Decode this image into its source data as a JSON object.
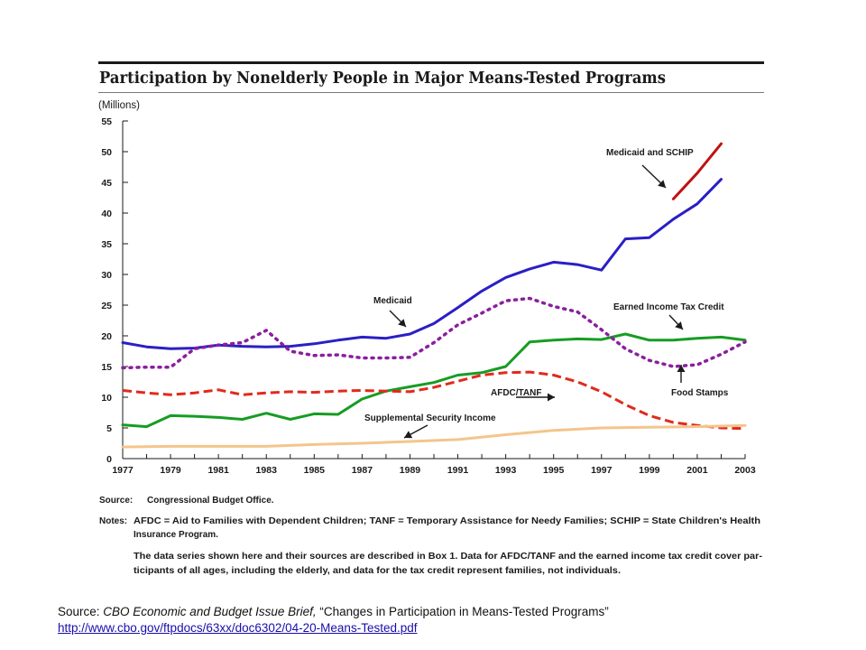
{
  "chart_data": {
    "type": "line",
    "title": "Participation by Nonelderly People in Major Means-Tested Programs",
    "ylabel": "(Millions)",
    "xlabel": "",
    "xlim": [
      1977,
      2003
    ],
    "ylim": [
      0,
      55
    ],
    "y_ticks": [
      0,
      5,
      10,
      15,
      20,
      25,
      30,
      35,
      40,
      45,
      50,
      55
    ],
    "x_ticks": [
      1977,
      1979,
      1981,
      1983,
      1985,
      1987,
      1989,
      1991,
      1993,
      1995,
      1997,
      1999,
      2001,
      2003
    ],
    "grid": false,
    "series": [
      {
        "name": "Medicaid",
        "color": "#2a1fc4",
        "dash": "solid",
        "x": [
          1977,
          1978,
          1979,
          1980,
          1981,
          1982,
          1983,
          1984,
          1985,
          1986,
          1987,
          1988,
          1989,
          1990,
          1991,
          1992,
          1993,
          1994,
          1995,
          1996,
          1997,
          1998,
          1999,
          2000,
          2001,
          2002
        ],
        "y": [
          18.9,
          18.2,
          17.9,
          18.0,
          18.5,
          18.3,
          18.2,
          18.3,
          18.7,
          19.3,
          19.8,
          19.6,
          20.3,
          22.0,
          24.6,
          27.3,
          29.5,
          30.9,
          32.0,
          31.6,
          30.7,
          35.8,
          36.0,
          39.0,
          41.5,
          45.5
        ]
      },
      {
        "name": "Medicaid and SCHIP",
        "color": "#c01212",
        "dash": "solid",
        "x": [
          2000,
          2001,
          2002
        ],
        "y": [
          42.3,
          46.5,
          51.3
        ]
      },
      {
        "name": "Earned Income Tax Credit",
        "color": "#179c23",
        "dash": "solid",
        "x": [
          1977,
          1978,
          1979,
          1980,
          1981,
          1982,
          1983,
          1984,
          1985,
          1986,
          1987,
          1988,
          1989,
          1990,
          1991,
          1992,
          1993,
          1994,
          1995,
          1996,
          1997,
          1998,
          1999,
          2000,
          2001,
          2002,
          2003
        ],
        "y": [
          5.5,
          5.2,
          7.0,
          6.9,
          6.7,
          6.4,
          7.4,
          6.4,
          7.3,
          7.2,
          9.7,
          11.0,
          11.7,
          12.4,
          13.6,
          14.0,
          15.0,
          19.0,
          19.3,
          19.5,
          19.4,
          20.3,
          19.3,
          19.3,
          19.6,
          19.8,
          19.3
        ]
      },
      {
        "name": "Food Stamps",
        "color": "#8a1f9e",
        "dash": "dotted",
        "x": [
          1977,
          1978,
          1979,
          1980,
          1981,
          1982,
          1983,
          1984,
          1985,
          1986,
          1987,
          1988,
          1989,
          1990,
          1991,
          1992,
          1993,
          1994,
          1995,
          1996,
          1997,
          1998,
          1999,
          2000,
          2001,
          2002,
          2003
        ],
        "y": [
          14.8,
          14.9,
          14.9,
          17.9,
          18.5,
          18.9,
          20.9,
          17.5,
          16.8,
          16.9,
          16.4,
          16.4,
          16.5,
          18.9,
          21.8,
          23.7,
          25.7,
          26.1,
          24.8,
          23.9,
          21.0,
          17.9,
          16.0,
          15.0,
          15.3,
          17.0,
          19.0
        ]
      },
      {
        "name": "AFDC/TANF",
        "color": "#e12a1c",
        "dash": "dashed",
        "x": [
          1977,
          1978,
          1979,
          1980,
          1981,
          1982,
          1983,
          1984,
          1985,
          1986,
          1987,
          1988,
          1989,
          1990,
          1991,
          1992,
          1993,
          1994,
          1995,
          1996,
          1997,
          1998,
          1999,
          2000,
          2001,
          2002,
          2003
        ],
        "y": [
          11.1,
          10.7,
          10.4,
          10.7,
          11.2,
          10.4,
          10.7,
          10.9,
          10.8,
          11.0,
          11.1,
          11.0,
          10.9,
          11.6,
          12.6,
          13.6,
          14.0,
          14.1,
          13.6,
          12.5,
          10.9,
          8.8,
          7.0,
          5.9,
          5.4,
          5.0,
          4.9
        ]
      },
      {
        "name": "Supplemental Security Income",
        "color": "#f4c58c",
        "dash": "solid",
        "x": [
          1977,
          1979,
          1981,
          1983,
          1985,
          1987,
          1989,
          1991,
          1993,
          1995,
          1997,
          1999,
          2001,
          2003
        ],
        "y": [
          1.9,
          2.0,
          2.0,
          2.0,
          2.3,
          2.5,
          2.8,
          3.1,
          3.9,
          4.6,
          5.0,
          5.1,
          5.2,
          5.4
        ]
      }
    ],
    "annotations": [
      "Medicaid and SCHIP",
      "Medicaid",
      "Earned Income Tax Credit",
      "AFDC/TANF",
      "Food Stamps",
      "Supplemental Security Income"
    ]
  },
  "notes": {
    "source_label": "Source:",
    "source_text": "Congressional Budget Office.",
    "notes_label": "Notes:",
    "note_lines": [
      "AFDC = Aid to Families with Dependent Children; TANF = Temporary Assistance for Needy Families; SCHIP = State Children's Health",
      "Insurance Program.",
      "The data series shown here and their sources are described in Box 1. Data for AFDC/TANF and the earned income tax credit cover par-",
      "ticipants of all ages, including the elderly, and data for the tax credit represent families, not individuals."
    ]
  },
  "footer": {
    "source_prefix": "Source: ",
    "source_title": "CBO Economic and Budget Issue Brief,",
    "source_rest": " “Changes in Participation in Means-Tested Programs”",
    "url": "http://www.cbo.gov/ftpdocs/63xx/doc6302/04-20-Means-Tested.pdf"
  }
}
